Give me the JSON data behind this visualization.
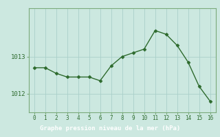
{
  "x": [
    0,
    1,
    2,
    3,
    4,
    5,
    6,
    7,
    8,
    9,
    10,
    11,
    12,
    13,
    14,
    15,
    16
  ],
  "y": [
    1012.7,
    1012.7,
    1012.55,
    1012.45,
    1012.45,
    1012.45,
    1012.35,
    1012.75,
    1013.0,
    1013.1,
    1013.2,
    1013.7,
    1013.6,
    1013.3,
    1012.85,
    1012.2,
    1011.8
  ],
  "line_color": "#2d6a2d",
  "marker_color": "#2d6a2d",
  "bg_color": "#cce8e0",
  "grid_color": "#aacfca",
  "xlabel": "Graphe pression niveau de la mer (hPa)",
  "xlabel_color": "#ffffff",
  "xlabel_bg": "#4a8a4a",
  "yticks": [
    1012,
    1013
  ],
  "ylim": [
    1011.5,
    1014.3
  ],
  "xlim": [
    -0.5,
    16.5
  ],
  "spine_color": "#7aaa7a"
}
